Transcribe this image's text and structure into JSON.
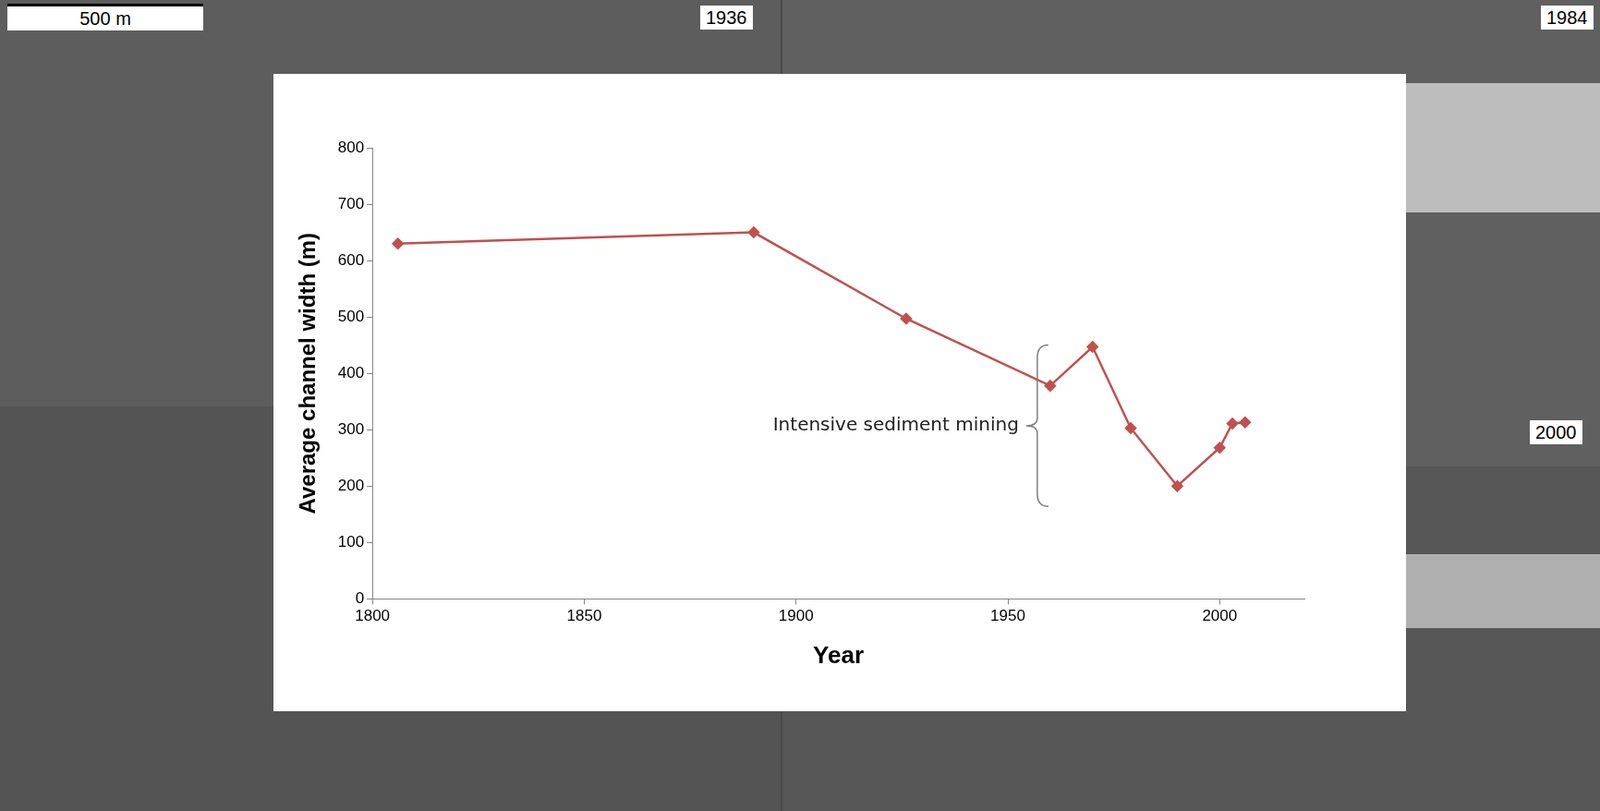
{
  "chart_data": {
    "type": "line",
    "x_label": "Year",
    "y_label": "Average channel width (m)",
    "x": [
      1806,
      1890,
      1926,
      1960,
      1970,
      1979,
      1990,
      2000,
      2003,
      2006
    ],
    "values": [
      630,
      650,
      497,
      378,
      447,
      303,
      200,
      268,
      311,
      313
    ],
    "color": "#c0504d",
    "marker": "diamond",
    "xlim": [
      1800,
      2020
    ],
    "xticks": [
      1800,
      1850,
      1900,
      1950,
      2000
    ],
    "ylim": [
      0,
      800
    ],
    "yticks": [
      0,
      100,
      200,
      300,
      400,
      500,
      600,
      700,
      800
    ],
    "grid": false,
    "annotation": "Intensive sediment mining"
  },
  "photo_labels": [
    "500 m",
    "1936",
    "1984",
    "2000"
  ]
}
